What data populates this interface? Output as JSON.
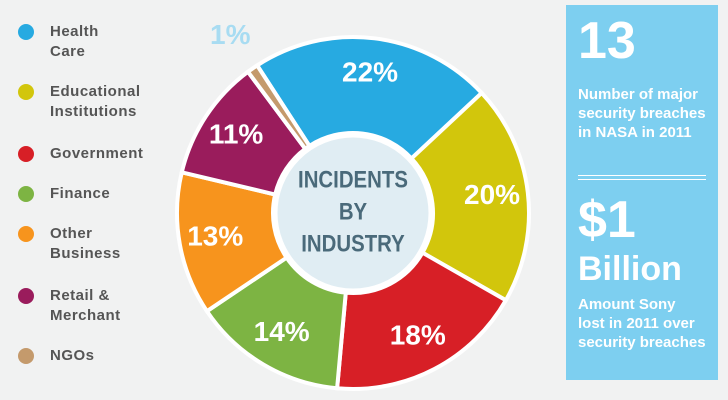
{
  "chart_data": {
    "type": "donut",
    "title_lines": [
      "INCIDENTS",
      "BY",
      "INDUSTRY"
    ],
    "categories": [
      "Health Care",
      "Educational Institutions",
      "Government",
      "Finance",
      "Other Business",
      "Retail & Merchant",
      "NGOs"
    ],
    "values": [
      22,
      20,
      18,
      14,
      13,
      11,
      1
    ],
    "value_labels": [
      "22%",
      "20%",
      "18%",
      "14%",
      "13%",
      "11%",
      "1%"
    ],
    "colors": [
      "#27aae1",
      "#d2c60c",
      "#d71f26",
      "#7db443",
      "#f7941d",
      "#9a1c5c",
      "#c49a6c"
    ],
    "legend": "left"
  },
  "panel": {
    "stat1": {
      "value": "13",
      "text": "Number of major security breaches in NASA in 2011"
    },
    "stat2": {
      "value": "$1",
      "unit": "Billion",
      "text": "Amount Sony lost in 2011 over security breaches"
    }
  }
}
